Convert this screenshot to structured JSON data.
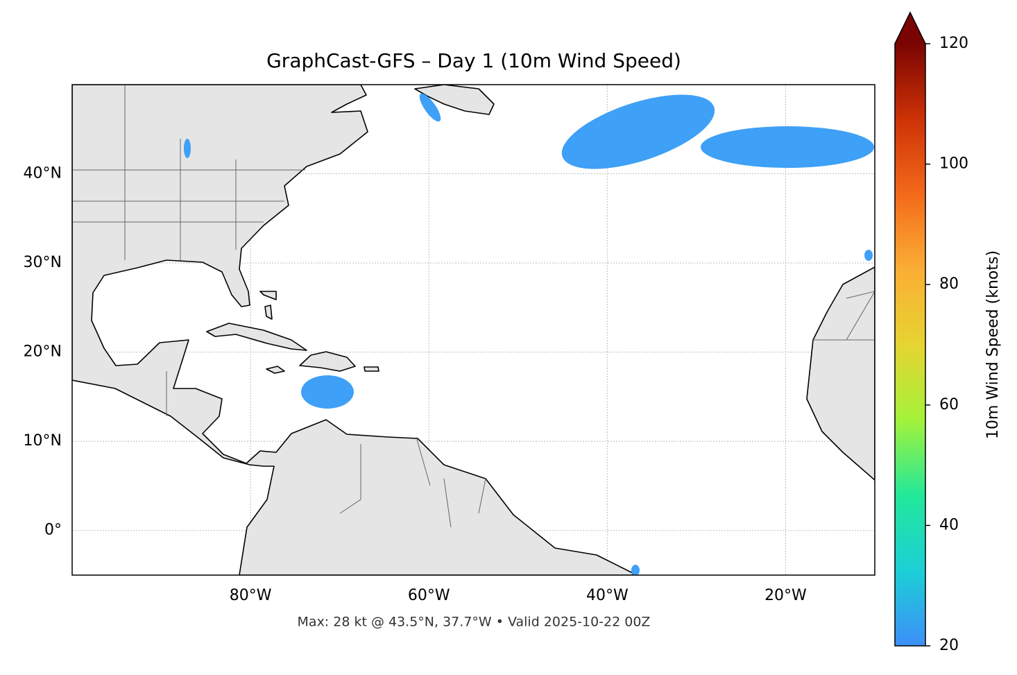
{
  "title": "GraphCast-GFS – Day 1 (10m Wind Speed)",
  "map": {
    "xlim": [
      -100,
      -10
    ],
    "ylim": [
      -5,
      50
    ],
    "xticks": [
      {
        "value": -80,
        "label": "80°W"
      },
      {
        "value": -60,
        "label": "60°W"
      },
      {
        "value": -40,
        "label": "40°W"
      },
      {
        "value": -20,
        "label": "20°W"
      }
    ],
    "yticks": [
      {
        "value": 0,
        "label": "0°"
      },
      {
        "value": 10,
        "label": "10°N"
      },
      {
        "value": 20,
        "label": "20°N"
      },
      {
        "value": 30,
        "label": "30°N"
      },
      {
        "value": 40,
        "label": "40°N"
      }
    ],
    "grid": true
  },
  "footer": "Max: 28 kt @ 43.5°N, 37.7°W • Valid 2025-10-22 00Z",
  "colorbar": {
    "label": "10m Wind Speed (knots)",
    "lim": [
      20,
      120
    ],
    "ticks": [
      20,
      40,
      60,
      80,
      100,
      120
    ],
    "colors": [
      "#3d8ff8",
      "#1ccfd6",
      "#22e89a",
      "#a4f23a",
      "#e6d431",
      "#fbae35",
      "#f36a1a",
      "#cd3206",
      "#7a0403"
    ]
  }
}
